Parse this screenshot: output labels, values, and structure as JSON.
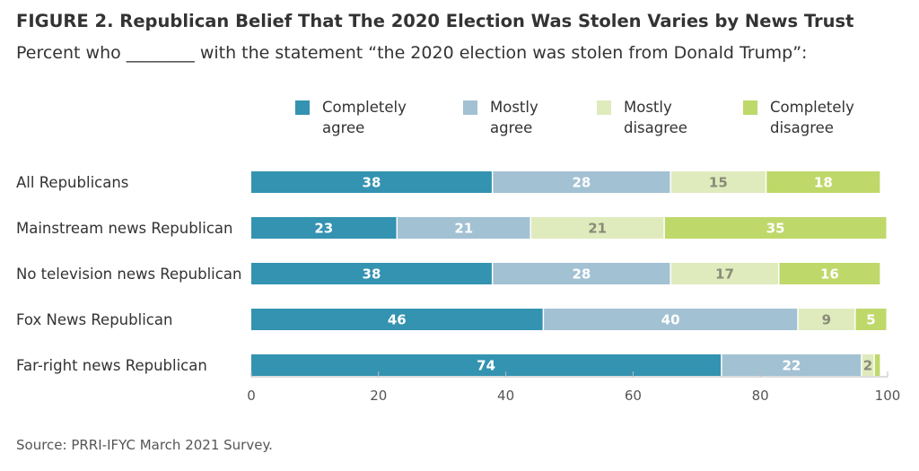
{
  "figure": {
    "title": "FIGURE 2.  Republican Belief That The 2020 Election Was Stolen Varies by News Trust",
    "subtitle": "Percent who ________ with the statement “the 2020 election was stolen from Donald Trump”:",
    "source": "Source: PRRI-IFYC March 2021 Survey."
  },
  "chart_data": {
    "type": "bar",
    "orientation": "horizontal",
    "stacked": true,
    "categories": [
      "All Republicans",
      "Mainstream news Republican",
      "No television news Republican",
      "Fox News Republican",
      "Far-right news Republican"
    ],
    "series": [
      {
        "name": "Completely agree",
        "legend_lines": [
          "Completely",
          "agree"
        ],
        "color": "#3393b0",
        "label_color": "#ffffff",
        "values": [
          38,
          23,
          38,
          46,
          74
        ]
      },
      {
        "name": "Mostly agree",
        "legend_lines": [
          "Mostly",
          "agree"
        ],
        "color": "#a2c1d3",
        "label_color": "#ffffff",
        "values": [
          28,
          21,
          28,
          40,
          22
        ]
      },
      {
        "name": "Mostly disagree",
        "legend_lines": [
          "Mostly",
          "disagree"
        ],
        "color": "#dfebbd",
        "label_color": "#8a8a78",
        "values": [
          15,
          21,
          17,
          9,
          2
        ]
      },
      {
        "name": "Completely disagree",
        "legend_lines": [
          "Completely",
          "disagree"
        ],
        "color": "#bfd86a",
        "label_color": "#ffffff",
        "values": [
          18,
          35,
          16,
          5,
          1
        ]
      }
    ],
    "hidden_labels": [
      [
        4,
        3
      ]
    ],
    "xlim": [
      0,
      100
    ],
    "xticks": [
      0,
      20,
      40,
      60,
      80,
      100
    ],
    "grid": false,
    "legend_position": "top"
  }
}
